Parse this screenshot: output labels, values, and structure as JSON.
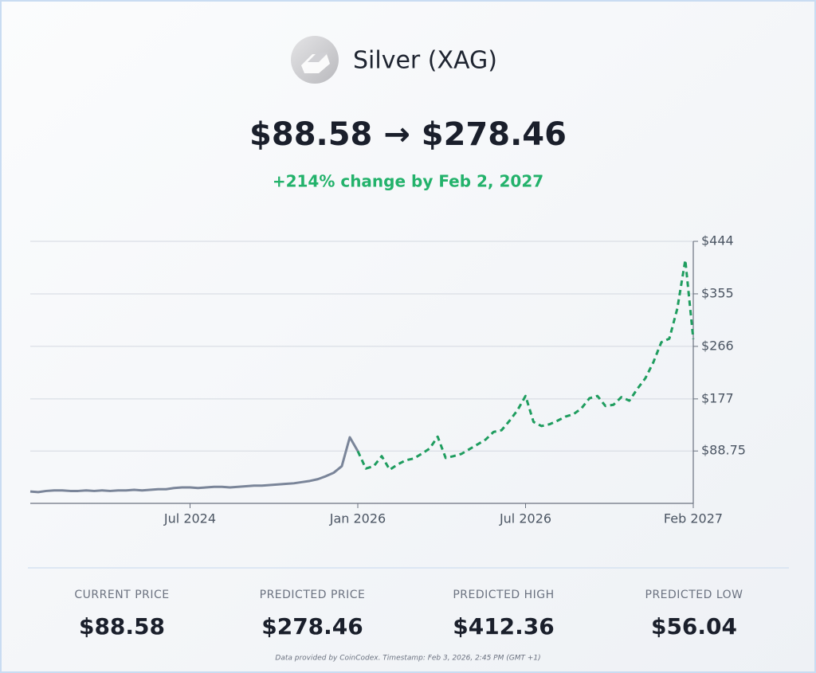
{
  "header": {
    "title": "Silver (XAG)",
    "price_change": "$88.58 → $278.46",
    "change_note": "+214% change by Feb 2, 2027"
  },
  "chart_data": {
    "type": "line",
    "categories": [
      null,
      null,
      null,
      null,
      null,
      null,
      null,
      null,
      null,
      null,
      null,
      null,
      null,
      null,
      null,
      null,
      null,
      null,
      null,
      null,
      "Jul 2024",
      null,
      null,
      null,
      null,
      null,
      null,
      null,
      null,
      null,
      null,
      null,
      null,
      null,
      null,
      null,
      null,
      null,
      null,
      null,
      null,
      "Jan 2026",
      null,
      null,
      null,
      null,
      null,
      null,
      null,
      null,
      null,
      null,
      null,
      null,
      null,
      null,
      null,
      null,
      null,
      null,
      null,
      null,
      "Jul 2026",
      null,
      null,
      null,
      null,
      null,
      null,
      null,
      null,
      null,
      null,
      null,
      null,
      null,
      null,
      null,
      null,
      null,
      null,
      null,
      null,
      "Feb 2027"
    ],
    "series": [
      {
        "color": "#7a8599",
        "dashed": false,
        "values": [
          20,
          19,
          21,
          22,
          22,
          21,
          21,
          22,
          21,
          22,
          21,
          22,
          22,
          23,
          22,
          23,
          24,
          24,
          26,
          27,
          27,
          26,
          27,
          28,
          28,
          27,
          28,
          29,
          30,
          30,
          31,
          32,
          33,
          34,
          36,
          38,
          41,
          46,
          52,
          63,
          112,
          88.58,
          null,
          null,
          null,
          null,
          null,
          null,
          null,
          null,
          null,
          null,
          null,
          null,
          null,
          null,
          null,
          null,
          null,
          null,
          null,
          null,
          null,
          null,
          null,
          null,
          null,
          null,
          null,
          null,
          null,
          null,
          null,
          null,
          null,
          null,
          null,
          null,
          null,
          null,
          null,
          null,
          null,
          null
        ]
      },
      {
        "color": "#1f9d5f",
        "dashed": true,
        "values": [
          null,
          null,
          null,
          null,
          null,
          null,
          null,
          null,
          null,
          null,
          null,
          null,
          null,
          null,
          null,
          null,
          null,
          null,
          null,
          null,
          null,
          null,
          null,
          null,
          null,
          null,
          null,
          null,
          null,
          null,
          null,
          null,
          null,
          null,
          null,
          null,
          null,
          null,
          null,
          null,
          null,
          88.58,
          59,
          63,
          80,
          57,
          66,
          73,
          76,
          84,
          93,
          113,
          77,
          80,
          84,
          92,
          100,
          108,
          121,
          124,
          140,
          158,
          182,
          138,
          131,
          134,
          140,
          147,
          151,
          161,
          178,
          182,
          165,
          167,
          180,
          174,
          194,
          212,
          239,
          273,
          279,
          330,
          412.36,
          278.46
        ]
      }
    ],
    "ylim": [
      0,
      444
    ],
    "yticks": [
      {
        "value": 88.75,
        "label": "$88.75"
      },
      {
        "value": 177,
        "label": "$177"
      },
      {
        "value": 266,
        "label": "$266"
      },
      {
        "value": 355,
        "label": "$355"
      },
      {
        "value": 444,
        "label": "$444"
      }
    ],
    "grid": true
  },
  "stats": [
    {
      "label": "CURRENT PRICE",
      "value": "$88.58"
    },
    {
      "label": "PREDICTED PRICE",
      "value": "$278.46"
    },
    {
      "label": "PREDICTED HIGH",
      "value": "$412.36"
    },
    {
      "label": "PREDICTED LOW",
      "value": "$56.04"
    }
  ],
  "footer": "Data provided by CoinCodex. Timestamp: Feb 3, 2026, 2:45 PM (GMT +1)"
}
